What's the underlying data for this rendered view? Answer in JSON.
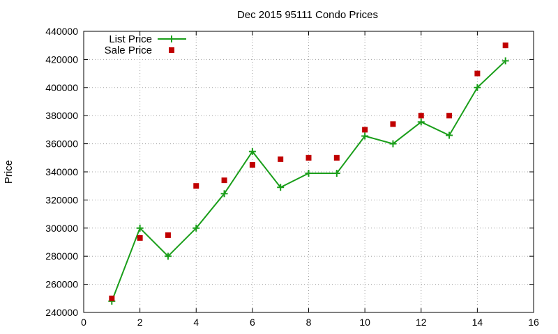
{
  "chart_data": {
    "type": "line",
    "title": "Dec 2015 95111 Condo Prices",
    "xlabel": "",
    "ylabel": "Price",
    "xlim": [
      0,
      16
    ],
    "ylim": [
      240000,
      440000
    ],
    "x_ticks": [
      "0",
      "2",
      "4",
      "6",
      "8",
      "10",
      "12",
      "14",
      "16"
    ],
    "y_ticks": [
      "240000",
      "260000",
      "280000",
      "300000",
      "320000",
      "340000",
      "360000",
      "380000",
      "400000",
      "420000",
      "440000"
    ],
    "grid": true,
    "legend_position": "top-left",
    "x": [
      1,
      2,
      3,
      4,
      5,
      6,
      7,
      8,
      9,
      10,
      11,
      12,
      13,
      14,
      15
    ],
    "series": [
      {
        "name": "List Price",
        "style": "linespoints",
        "marker": "plus",
        "color": "#1a9e1a",
        "values": [
          248000,
          300000,
          280000,
          300000,
          324500,
          354500,
          329000,
          339000,
          339000,
          365500,
          360000,
          375500,
          366000,
          400000,
          419000
        ]
      },
      {
        "name": "Sale Price",
        "style": "points",
        "marker": "square",
        "color": "#c00000",
        "values": [
          250000,
          293000,
          295000,
          330000,
          334000,
          345000,
          349000,
          350000,
          350000,
          370000,
          374000,
          380000,
          380000,
          410000,
          430000
        ]
      }
    ]
  }
}
